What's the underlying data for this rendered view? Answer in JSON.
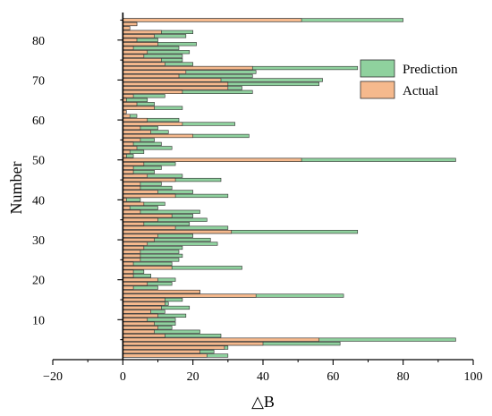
{
  "chart_data": {
    "type": "bar",
    "orientation": "horizontal",
    "xlabel": "△B",
    "ylabel": "Number",
    "xlim": [
      -20,
      100
    ],
    "ylim": [
      0,
      86
    ],
    "x_ticks": [
      -20,
      0,
      20,
      40,
      60,
      80,
      100
    ],
    "y_ticks": [
      10,
      20,
      30,
      40,
      50,
      60,
      70,
      80
    ],
    "legend_position": "top-right",
    "grid": false,
    "categories": [
      1,
      2,
      3,
      4,
      5,
      6,
      7,
      8,
      9,
      10,
      11,
      12,
      13,
      14,
      15,
      16,
      17,
      18,
      19,
      20,
      21,
      22,
      23,
      24,
      25,
      26,
      27,
      28,
      29,
      30,
      31,
      32,
      33,
      34,
      35,
      36,
      37,
      38,
      39,
      40,
      41,
      42,
      43,
      44,
      45,
      46,
      47,
      48,
      49,
      50,
      51,
      52,
      53,
      54,
      55,
      56,
      57,
      58,
      59,
      60,
      61,
      62,
      63,
      64,
      65,
      66,
      67,
      68,
      69,
      70,
      71,
      72,
      73,
      74,
      75,
      76,
      77,
      78,
      79,
      80,
      81,
      82,
      83,
      84,
      85
    ],
    "series": [
      {
        "name": "Prediction",
        "color": "#8fd19e",
        "values": [
          30,
          26,
          30,
          62,
          95,
          28,
          22,
          14,
          15,
          15,
          18,
          12,
          19,
          13,
          17,
          63,
          22,
          10,
          14,
          15,
          8,
          6,
          34,
          14,
          16,
          17,
          16,
          17,
          27,
          25,
          20,
          67,
          30,
          19,
          24,
          20,
          22,
          10,
          12,
          5,
          30,
          20,
          14,
          11,
          28,
          17,
          9,
          11,
          15,
          95,
          3,
          6,
          14,
          11,
          9,
          36,
          13,
          10,
          32,
          16,
          4,
          0,
          17,
          9,
          7,
          12,
          37,
          34,
          56,
          57,
          37,
          38,
          67,
          20,
          17,
          17,
          19,
          16,
          21,
          10,
          18,
          20,
          2,
          4,
          80
        ],
        "stroke": "#2f2f2f"
      },
      {
        "name": "Actual",
        "color": "#f5b98d",
        "values": [
          24,
          22,
          29,
          40,
          56,
          12,
          9,
          10,
          9,
          7,
          10,
          8,
          11,
          12,
          12,
          38,
          22,
          3,
          7,
          10,
          3,
          3,
          14,
          3,
          5,
          5,
          5,
          6,
          7,
          9,
          10,
          31,
          15,
          6,
          10,
          14,
          5,
          2,
          6,
          1,
          15,
          10,
          5,
          5,
          15,
          7,
          3,
          3,
          6,
          51,
          1,
          2,
          4,
          3,
          5,
          20,
          8,
          5,
          17,
          7,
          2,
          1,
          9,
          4,
          1,
          3,
          17,
          30,
          30,
          28,
          16,
          18,
          37,
          12,
          11,
          6,
          7,
          3,
          10,
          4,
          9,
          11,
          2,
          4,
          51
        ],
        "stroke": "#2f2f2f"
      }
    ]
  }
}
